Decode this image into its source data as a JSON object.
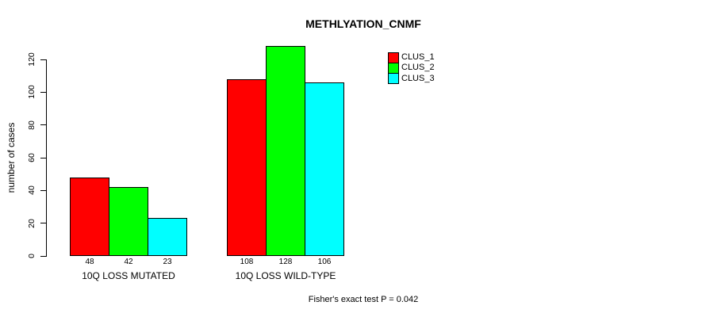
{
  "chart_data": {
    "type": "bar",
    "title": "METHLYATION_CNMF",
    "xlabel": "",
    "ylabel": "number of cases",
    "categories": [
      "10Q LOSS MUTATED",
      "10Q LOSS WILD-TYPE"
    ],
    "series": [
      {
        "name": "CLUS_1",
        "color": "#FF0000",
        "values": [
          48,
          108
        ]
      },
      {
        "name": "CLUS_2",
        "color": "#00FF00",
        "values": [
          42,
          128
        ]
      },
      {
        "name": "CLUS_3",
        "color": "#00FFFF",
        "values": [
          23,
          106
        ]
      }
    ],
    "bar_value_labels": [
      [
        48,
        42,
        23
      ],
      [
        108,
        128,
        106
      ]
    ],
    "yticks": [
      0,
      20,
      40,
      60,
      80,
      100,
      120
    ],
    "ylim": [
      0,
      132
    ],
    "grid": false,
    "legend_position": "top-right",
    "legend_entries": [
      "CLUS_1",
      "CLUS_2",
      "CLUS_3"
    ],
    "annotation": "Fisher's exact test P = 0.042",
    "colors": {
      "background": "#FFFFFF",
      "axis": "#000000",
      "text": "#000000",
      "clus_1": "#FF0000",
      "clus_2": "#00FF00",
      "clus_3": "#00FFFF"
    }
  }
}
